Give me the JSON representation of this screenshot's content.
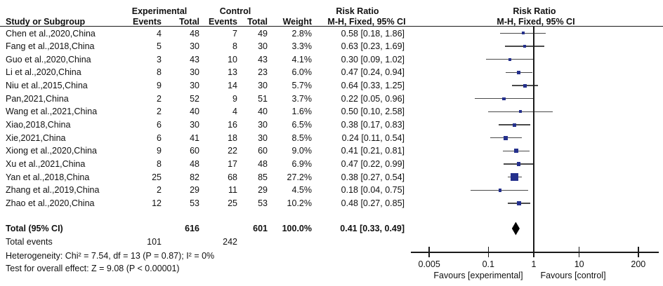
{
  "header": {
    "study": "Study or Subgroup",
    "experimental": "Experimental",
    "control": "Control",
    "events": "Events",
    "total": "Total",
    "weight": "Weight",
    "risk_ratio": "Risk Ratio",
    "method_ci": "M-H, Fixed, 95% CI"
  },
  "chart_data": {
    "type": "scatter",
    "subtype": "forest-plot",
    "x_scale": "log",
    "effect_measure": "Risk Ratio",
    "method": "M-H, Fixed, 95% CI",
    "axis_ticks": [
      0.005,
      0.1,
      1,
      10,
      200
    ],
    "axis_tick_labels": [
      "0.005",
      "0.1",
      "1",
      "10",
      "200"
    ],
    "favours_left": "Favours [experimental]",
    "favours_right": "Favours [control]",
    "studies": [
      {
        "name": "Chen et al.,2020,China",
        "exp_events": "4",
        "exp_total": "48",
        "ctrl_events": "7",
        "ctrl_total": "49",
        "weight": "2.8%",
        "weight_value": 2.8,
        "rr_label": "0.58 [0.18, 1.86]",
        "rr": 0.58,
        "ci_low": 0.18,
        "ci_high": 1.86
      },
      {
        "name": "Fang et al.,2018,China",
        "exp_events": "5",
        "exp_total": "30",
        "ctrl_events": "8",
        "ctrl_total": "30",
        "weight": "3.3%",
        "weight_value": 3.3,
        "rr_label": "0.63 [0.23, 1.69]",
        "rr": 0.63,
        "ci_low": 0.23,
        "ci_high": 1.69
      },
      {
        "name": "Guo et al.,2020,China",
        "exp_events": "3",
        "exp_total": "43",
        "ctrl_events": "10",
        "ctrl_total": "43",
        "weight": "4.1%",
        "weight_value": 4.1,
        "rr_label": "0.30 [0.09, 1.02]",
        "rr": 0.3,
        "ci_low": 0.09,
        "ci_high": 1.02
      },
      {
        "name": "Li et al.,2020,China",
        "exp_events": "8",
        "exp_total": "30",
        "ctrl_events": "13",
        "ctrl_total": "23",
        "weight": "6.0%",
        "weight_value": 6.0,
        "rr_label": "0.47 [0.24, 0.94]",
        "rr": 0.47,
        "ci_low": 0.24,
        "ci_high": 0.94
      },
      {
        "name": "Niu et al.,2015,China",
        "exp_events": "9",
        "exp_total": "30",
        "ctrl_events": "14",
        "ctrl_total": "30",
        "weight": "5.7%",
        "weight_value": 5.7,
        "rr_label": "0.64 [0.33, 1.25]",
        "rr": 0.64,
        "ci_low": 0.33,
        "ci_high": 1.25
      },
      {
        "name": "Pan,2021,China",
        "exp_events": "2",
        "exp_total": "52",
        "ctrl_events": "9",
        "ctrl_total": "51",
        "weight": "3.7%",
        "weight_value": 3.7,
        "rr_label": "0.22 [0.05, 0.96]",
        "rr": 0.22,
        "ci_low": 0.05,
        "ci_high": 0.96
      },
      {
        "name": "Wang et al.,2021,China",
        "exp_events": "2",
        "exp_total": "40",
        "ctrl_events": "4",
        "ctrl_total": "40",
        "weight": "1.6%",
        "weight_value": 1.6,
        "rr_label": "0.50 [0.10, 2.58]",
        "rr": 0.5,
        "ci_low": 0.1,
        "ci_high": 2.58
      },
      {
        "name": "Xiao,2018,China",
        "exp_events": "6",
        "exp_total": "30",
        "ctrl_events": "16",
        "ctrl_total": "30",
        "weight": "6.5%",
        "weight_value": 6.5,
        "rr_label": "0.38 [0.17, 0.83]",
        "rr": 0.38,
        "ci_low": 0.17,
        "ci_high": 0.83
      },
      {
        "name": "Xie,2021,China",
        "exp_events": "6",
        "exp_total": "41",
        "ctrl_events": "18",
        "ctrl_total": "30",
        "weight": "8.5%",
        "weight_value": 8.5,
        "rr_label": "0.24 [0.11, 0.54]",
        "rr": 0.24,
        "ci_low": 0.11,
        "ci_high": 0.54
      },
      {
        "name": "Xiong et al.,2020,China",
        "exp_events": "9",
        "exp_total": "60",
        "ctrl_events": "22",
        "ctrl_total": "60",
        "weight": "9.0%",
        "weight_value": 9.0,
        "rr_label": "0.41 [0.21, 0.81]",
        "rr": 0.41,
        "ci_low": 0.21,
        "ci_high": 0.81
      },
      {
        "name": "Xu et al.,2021,China",
        "exp_events": "8",
        "exp_total": "48",
        "ctrl_events": "17",
        "ctrl_total": "48",
        "weight": "6.9%",
        "weight_value": 6.9,
        "rr_label": "0.47 [0.22, 0.99]",
        "rr": 0.47,
        "ci_low": 0.22,
        "ci_high": 0.99
      },
      {
        "name": "Yan et al.,2018,China",
        "exp_events": "25",
        "exp_total": "82",
        "ctrl_events": "68",
        "ctrl_total": "85",
        "weight": "27.2%",
        "weight_value": 27.2,
        "rr_label": "0.38 [0.27, 0.54]",
        "rr": 0.38,
        "ci_low": 0.27,
        "ci_high": 0.54
      },
      {
        "name": "Zhang et al.,2019,China",
        "exp_events": "2",
        "exp_total": "29",
        "ctrl_events": "11",
        "ctrl_total": "29",
        "weight": "4.5%",
        "weight_value": 4.5,
        "rr_label": "0.18 [0.04, 0.75]",
        "rr": 0.18,
        "ci_low": 0.04,
        "ci_high": 0.75
      },
      {
        "name": "Zhao et al.,2020,China",
        "exp_events": "12",
        "exp_total": "53",
        "ctrl_events": "25",
        "ctrl_total": "53",
        "weight": "10.2%",
        "weight_value": 10.2,
        "rr_label": "0.48 [0.27, 0.85]",
        "rr": 0.48,
        "ci_low": 0.27,
        "ci_high": 0.85
      }
    ],
    "overall": {
      "label": "Total (95% CI)",
      "exp_total": "616",
      "ctrl_total": "601",
      "weight": "100.0%",
      "rr_label": "0.41 [0.33, 0.49]",
      "rr": 0.41,
      "ci_low": 0.33,
      "ci_high": 0.49
    }
  },
  "footer": {
    "total_events_label": "Total events",
    "total_events_exp": "101",
    "total_events_ctrl": "242",
    "heterogeneity": "Heterogeneity: Chi² = 7.54, df = 13 (P = 0.87); I² = 0%",
    "overall_effect": "Test for overall effect: Z = 9.08 (P < 0.00001)"
  },
  "colors": {
    "marker": "#24308C",
    "diamond": "#000000",
    "ci_line": "#4a4a4a",
    "axis": "#1a1a1a"
  }
}
